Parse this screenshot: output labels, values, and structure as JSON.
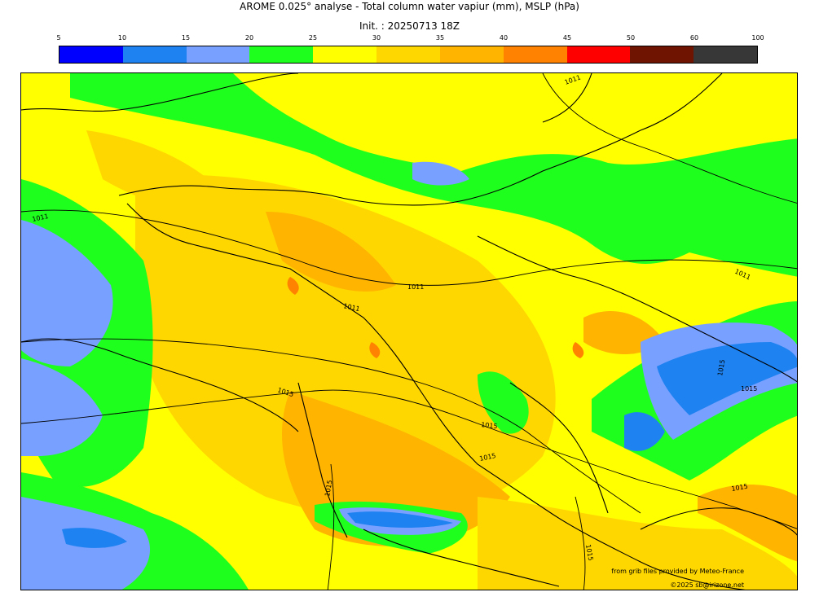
{
  "header": {
    "title": "AROME 0.025° analyse - Total column water vapiur (mm), MSLP (hPa)",
    "init": "Init. : 20250713 18Z"
  },
  "colorbar": {
    "ticks": [
      "5",
      "10",
      "15",
      "20",
      "25",
      "30",
      "35",
      "40",
      "45",
      "50",
      "60",
      "100"
    ],
    "colors": [
      "#0000ff",
      "#1e82f0",
      "#78a0ff",
      "#1eff1e",
      "#ffff00",
      "#ffd700",
      "#ffb400",
      "#ff8200",
      "#ff0000",
      "#6e1400",
      "#373737"
    ]
  },
  "isobars": [
    "1011",
    "1011",
    "1011",
    "1011",
    "1011",
    "1015",
    "1015",
    "1015",
    "1015",
    "1015",
    "1015",
    "1015",
    "1015"
  ],
  "credits": {
    "source": "from grib files provided by Meteo-France",
    "copyright": "©2025 sb@irizone.net"
  }
}
